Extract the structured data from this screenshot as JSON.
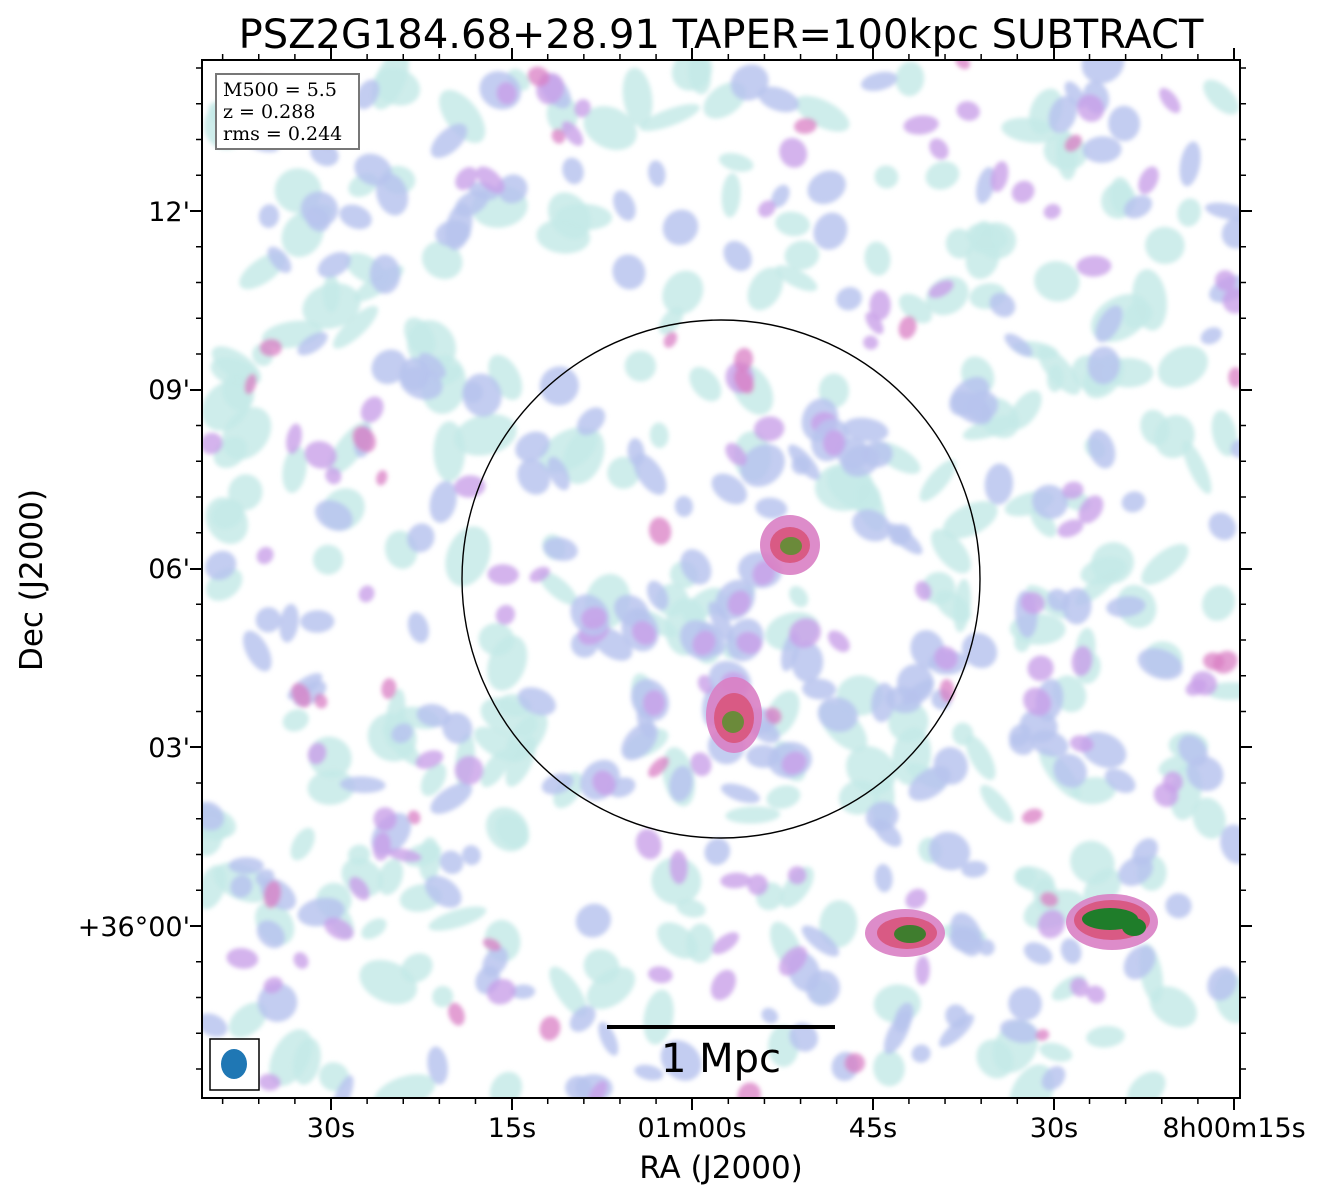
{
  "chart_data": {
    "type": "heatmap",
    "title": "PSZ2G184.68+28.91 TAPER=100kpc SUBTRACT",
    "xlabel": "RA (J2000)",
    "ylabel": "Dec (J2000)",
    "x_ticks": [
      "30s",
      "15s",
      "01m00s",
      "45s",
      "30s",
      "8h00m15s"
    ],
    "y_ticks": [
      "12'",
      "09'",
      "06'",
      "03'",
      "+36°00'"
    ],
    "info_box": [
      "M500 = 5.5",
      "z = 0.288",
      "rms = 0.244"
    ],
    "scale_bar_label": "1 Mpc",
    "colormap": [
      "#ffffff",
      "#c6eae8",
      "#b9c4ef",
      "#c9a0e8",
      "#d97fc4",
      "#d95a84",
      "#6b8a3a",
      "#1f7d2a"
    ],
    "beam_color": "#1f77b4",
    "bright_sources": [
      {
        "name": "source-north-center",
        "label": "bright compact source"
      },
      {
        "name": "source-center-south",
        "label": "bright compact source"
      },
      {
        "name": "source-southeast",
        "label": "bright compact source"
      },
      {
        "name": "source-far-southeast",
        "label": "bright compact source"
      }
    ]
  }
}
